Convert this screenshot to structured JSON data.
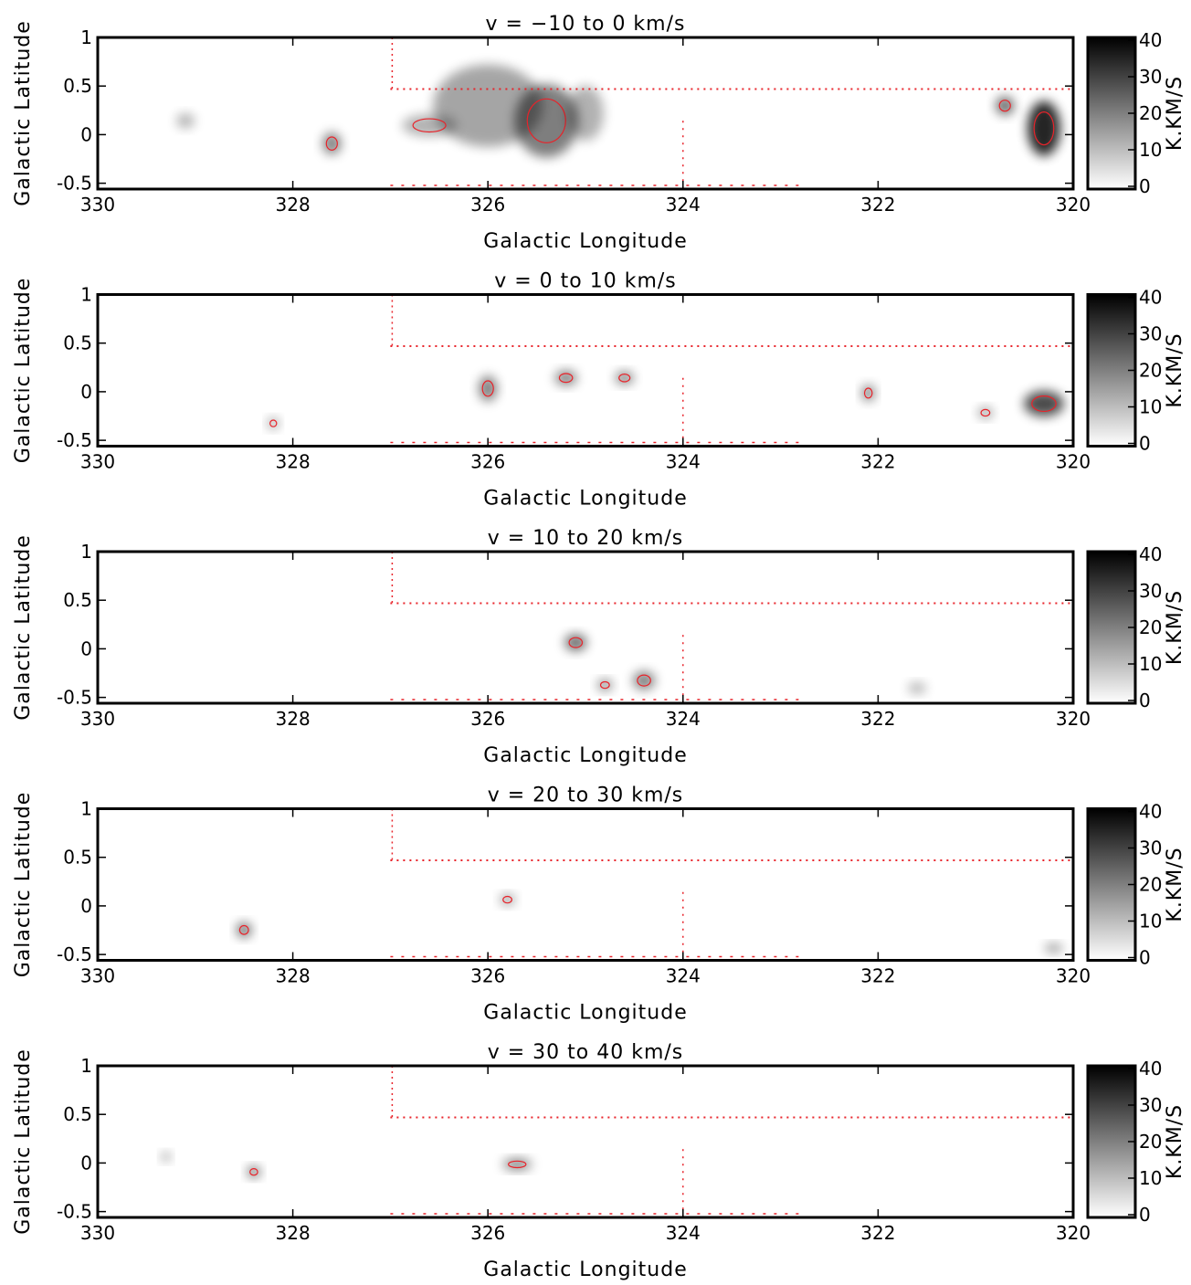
{
  "chart_data": [
    {
      "type": "image",
      "title": "v = −10 to 0 km/s",
      "xlabel": "Galactic Longitude",
      "ylabel": "Galactic Latitude",
      "xlim": [
        330,
        320
      ],
      "ylim": [
        -0.56,
        1.0
      ],
      "xticks": [
        330,
        328,
        326,
        324,
        322,
        320
      ],
      "yticks": [
        -0.5,
        0.0,
        0.5,
        1.0
      ],
      "colorbar_label": "K.KM/S",
      "clim": [
        0,
        40
      ],
      "cticks": [
        0,
        10,
        20,
        30,
        40
      ],
      "cmap": [
        "#ffffff",
        "#000000"
      ],
      "contour_color": "#e8232a"
    },
    {
      "type": "image",
      "title": "v = 0 to 10 km/s",
      "xlabel": "Galactic Longitude",
      "ylabel": "Galactic Latitude",
      "xlim": [
        330,
        320
      ],
      "ylim": [
        -0.56,
        1.0
      ],
      "xticks": [
        330,
        328,
        326,
        324,
        322,
        320
      ],
      "yticks": [
        -0.5,
        0.0,
        0.5,
        1.0
      ],
      "colorbar_label": "K.KM/S",
      "clim": [
        0,
        40
      ],
      "cticks": [
        0,
        10,
        20,
        30,
        40
      ],
      "cmap": [
        "#ffffff",
        "#000000"
      ],
      "contour_color": "#e8232a"
    },
    {
      "type": "image",
      "title": "v = 10 to 20 km/s",
      "xlabel": "Galactic Longitude",
      "ylabel": "Galactic Latitude",
      "xlim": [
        330,
        320
      ],
      "ylim": [
        -0.56,
        1.0
      ],
      "xticks": [
        330,
        328,
        326,
        324,
        322,
        320
      ],
      "yticks": [
        -0.5,
        0.0,
        0.5,
        1.0
      ],
      "colorbar_label": "K.KM/S",
      "clim": [
        0,
        40
      ],
      "cticks": [
        0,
        10,
        20,
        30,
        40
      ],
      "cmap": [
        "#ffffff",
        "#000000"
      ],
      "contour_color": "#e8232a"
    },
    {
      "type": "image",
      "title": "v = 20 to 30 km/s",
      "xlabel": "Galactic Longitude",
      "ylabel": "Galactic Latitude",
      "xlim": [
        330,
        320
      ],
      "ylim": [
        -0.56,
        1.0
      ],
      "xticks": [
        330,
        328,
        326,
        324,
        322,
        320
      ],
      "yticks": [
        -0.5,
        0.0,
        0.5,
        1.0
      ],
      "colorbar_label": "K.KM/S",
      "clim": [
        0,
        40
      ],
      "cticks": [
        0,
        10,
        20,
        30,
        40
      ],
      "cmap": [
        "#ffffff",
        "#000000"
      ],
      "contour_color": "#e8232a"
    },
    {
      "type": "image",
      "title": "v = 30 to 40 km/s",
      "xlabel": "Galactic Longitude",
      "ylabel": "Galactic Latitude",
      "xlim": [
        330,
        320
      ],
      "ylim": [
        -0.56,
        1.0
      ],
      "xticks": [
        330,
        328,
        326,
        324,
        322,
        320
      ],
      "yticks": [
        -0.5,
        0.0,
        0.5,
        1.0
      ],
      "colorbar_label": "K.KM/S",
      "clim": [
        0,
        40
      ],
      "cticks": [
        0,
        10,
        20,
        30,
        40
      ],
      "cmap": [
        "#ffffff",
        "#000000"
      ],
      "contour_color": "#e8232a"
    }
  ]
}
